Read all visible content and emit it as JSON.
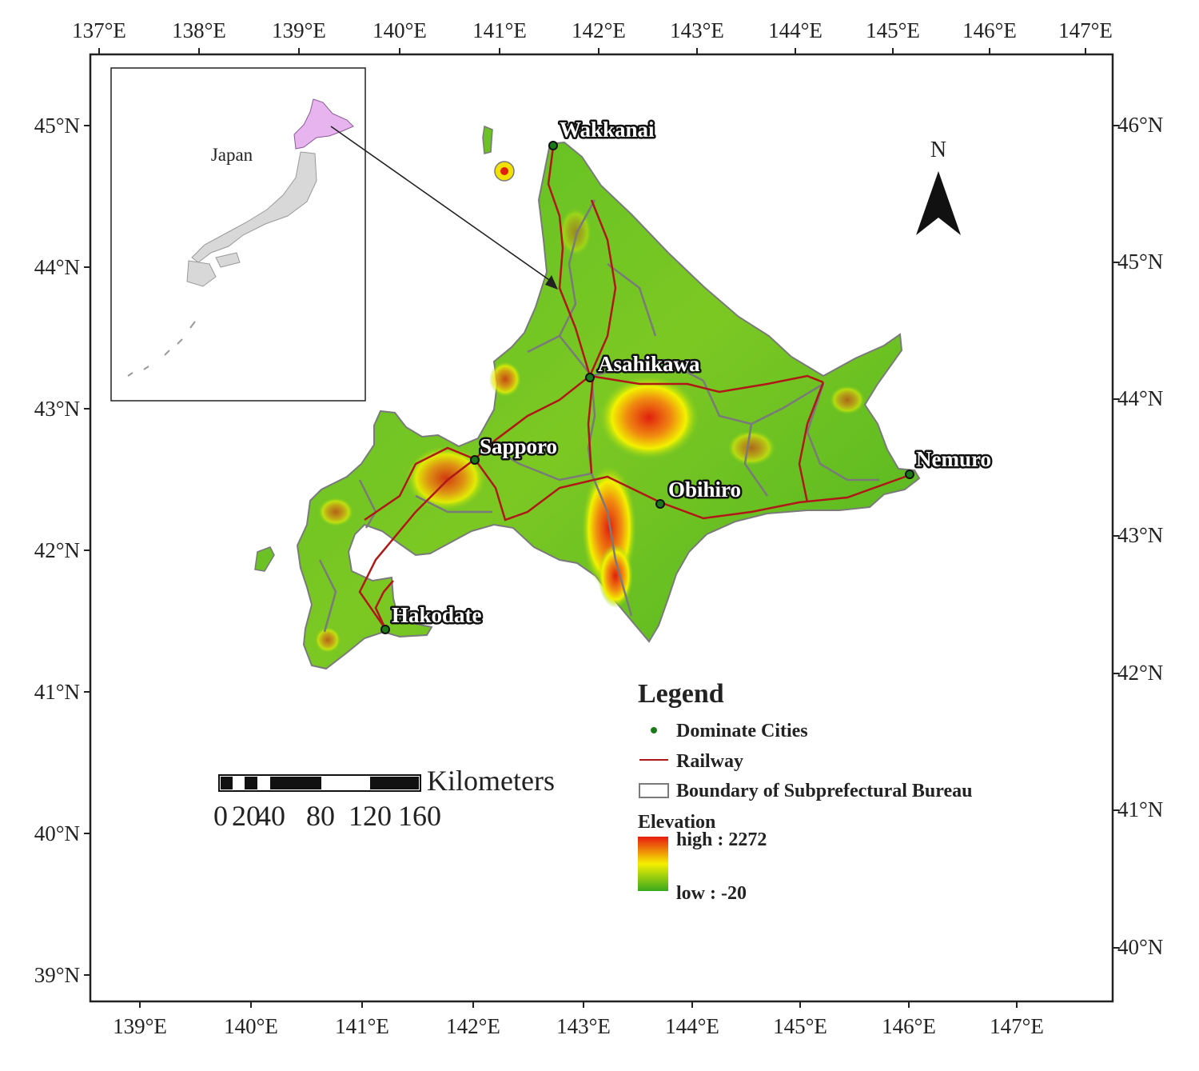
{
  "top_axis_labels": [
    "137°E",
    "138°E",
    "139°E",
    "140°E",
    "141°E",
    "142°E",
    "143°E",
    "144°E",
    "145°E",
    "146°E",
    "147°E"
  ],
  "bottom_axis_labels": [
    "139°E",
    "140°E",
    "141°E",
    "142°E",
    "143°E",
    "144°E",
    "145°E",
    "146°E",
    "147°E"
  ],
  "left_axis_labels": [
    "45°N",
    "44°N",
    "43°N",
    "42°N",
    "41°N",
    "40°N",
    "39°N"
  ],
  "right_axis_labels": [
    "46°N",
    "45°N",
    "44°N",
    "43°N",
    "42°N",
    "41°N",
    "40°N"
  ],
  "inset": {
    "label": "Japan"
  },
  "north_arrow": {
    "label": "N"
  },
  "cities": [
    {
      "name": "Wakkanai"
    },
    {
      "name": "Asahikawa"
    },
    {
      "name": "Sapporo"
    },
    {
      "name": "Nemuro"
    },
    {
      "name": "Obihiro"
    },
    {
      "name": "Hakodate"
    }
  ],
  "legend": {
    "title": "Legend",
    "cities": "Dominate Cities",
    "railway": "Railway",
    "boundary": "Boundary of Subprefectural Bureau",
    "elevation_title": "Elevation",
    "high": "high : 2272",
    "low": "low : -20"
  },
  "scale_bar": {
    "unit": "Kilometers",
    "labels": [
      "0",
      "20",
      "40",
      "80",
      "120",
      "160"
    ]
  },
  "colors": {
    "land_low": "#3daa1e",
    "land_mid": "#f2f200",
    "land_high": "#e0200e",
    "railway": "#b01818",
    "boundary": "#7a7a7a",
    "japan_fill": "#d8d8d8",
    "hokkaido_highlight": "#e8b4f0"
  }
}
